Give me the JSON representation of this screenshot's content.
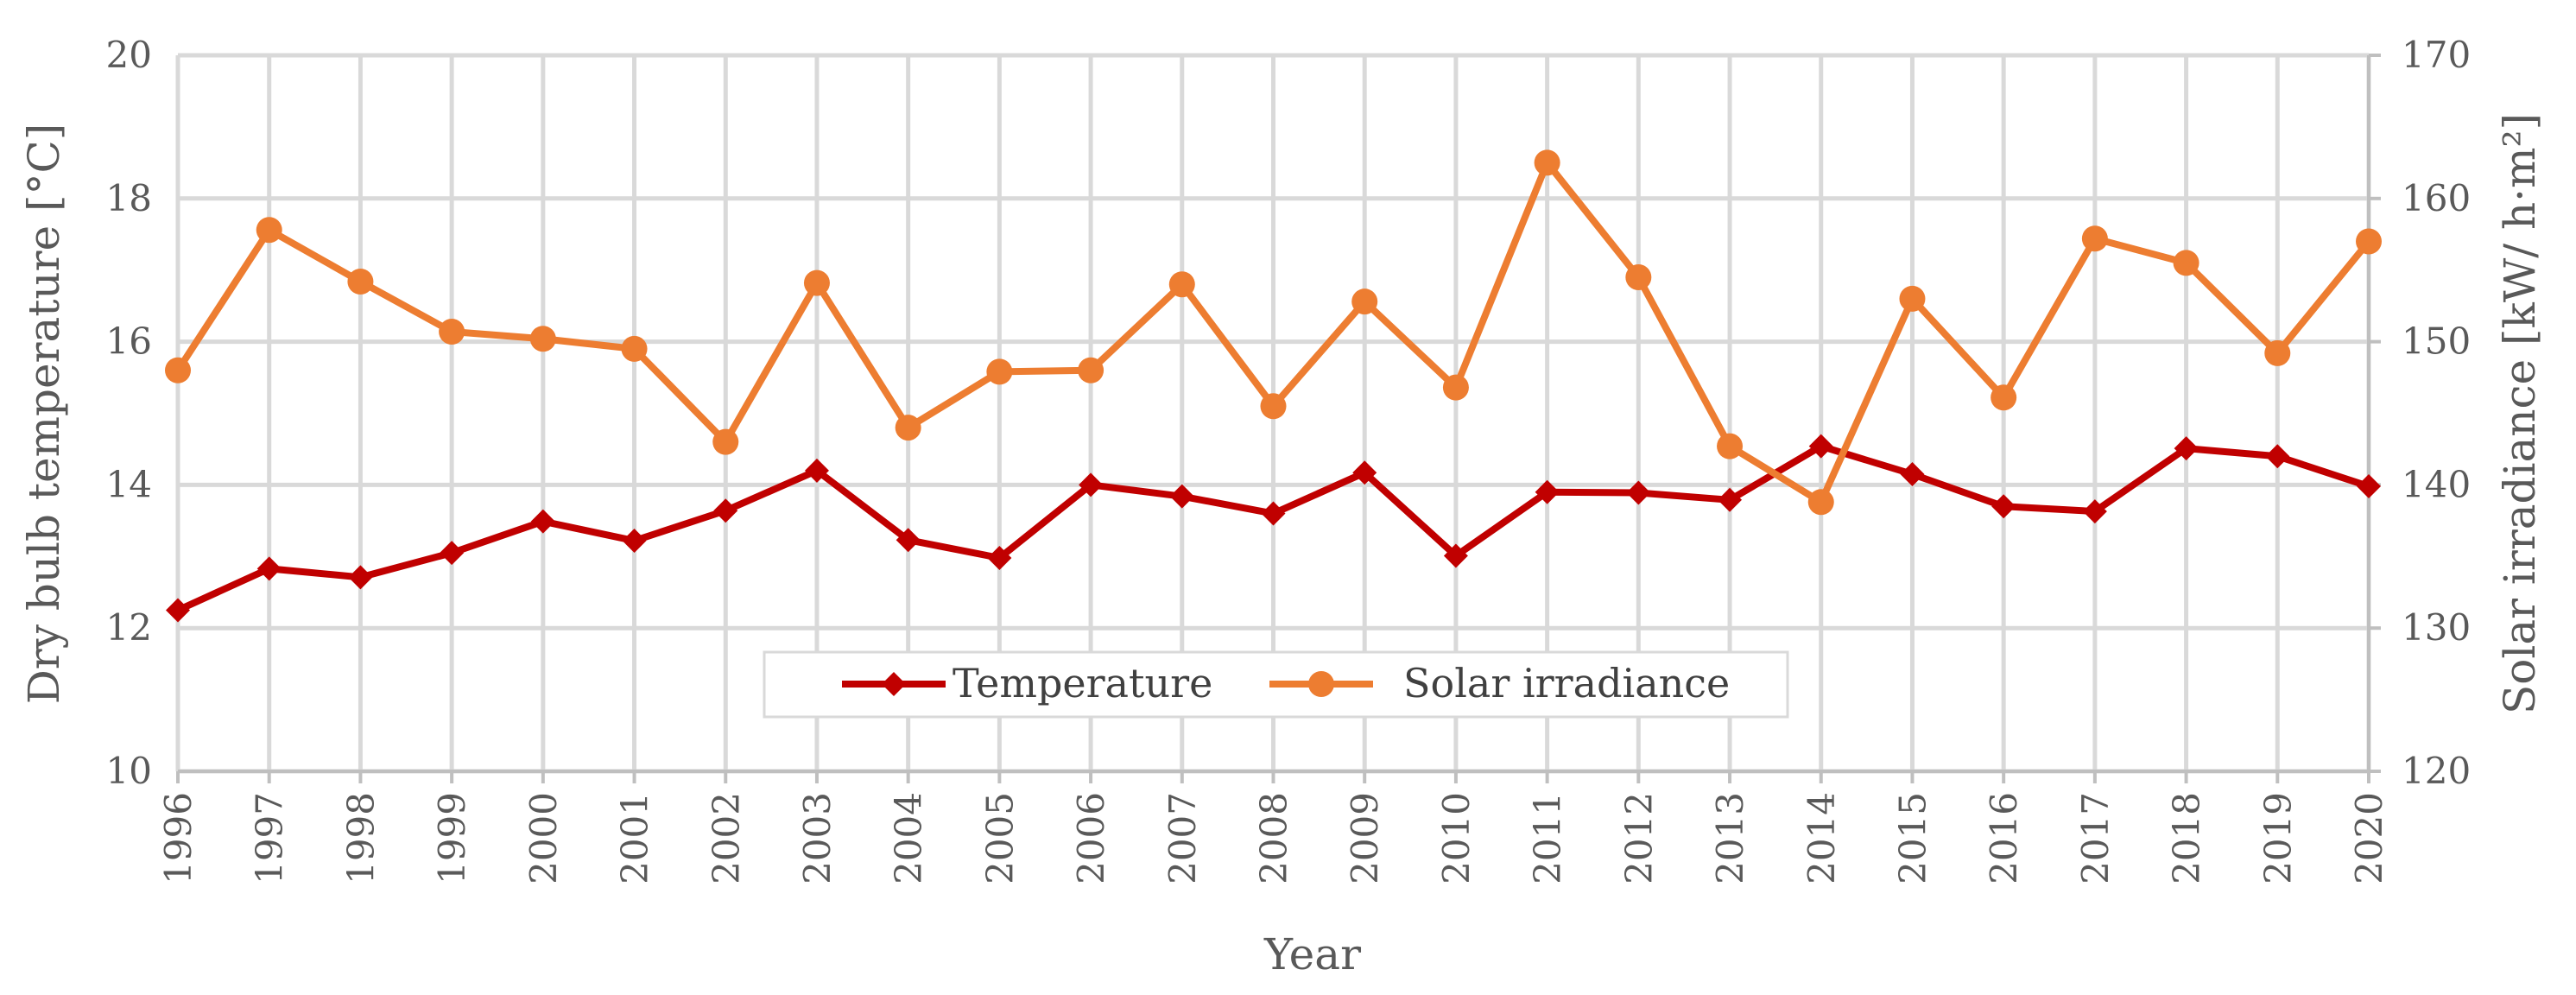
{
  "chart_data": {
    "type": "line",
    "x": [
      "1996",
      "1997",
      "1998",
      "1999",
      "2000",
      "2001",
      "2002",
      "2003",
      "2004",
      "2005",
      "2006",
      "2007",
      "2008",
      "2009",
      "2010",
      "2011",
      "2012",
      "2013",
      "2014",
      "2015",
      "2016",
      "2017",
      "2018",
      "2019",
      "2020"
    ],
    "xlabel": "Year",
    "ylabel": "Dry bulb temperature [°C]",
    "y2label": "Solar irradiance [kW/ h·m²]",
    "ylim": [
      10,
      20
    ],
    "y2lim": [
      120,
      170
    ],
    "yticks": [
      "10",
      "12",
      "14",
      "16",
      "18",
      "20"
    ],
    "y2ticks": [
      "120",
      "130",
      "140",
      "150",
      "160",
      "170"
    ],
    "grid": true,
    "legend_position": "bottom-center",
    "series": [
      {
        "name": "Temperature",
        "axis": "left",
        "marker": "diamond",
        "color": "#c00000",
        "values": [
          12.25,
          12.83,
          12.71,
          13.05,
          13.49,
          13.22,
          13.64,
          14.2,
          13.23,
          12.98,
          14.0,
          13.84,
          13.6,
          14.17,
          13.01,
          13.9,
          13.89,
          13.79,
          14.54,
          14.15,
          13.7,
          13.63,
          14.51,
          14.4,
          13.98
        ]
      },
      {
        "name": "Solar irradiance",
        "axis": "right",
        "marker": "circle",
        "color": "#ed7d31",
        "values": [
          148.0,
          157.8,
          154.2,
          150.7,
          150.2,
          149.5,
          143.0,
          154.1,
          144.0,
          147.9,
          148.0,
          154.0,
          145.5,
          152.8,
          146.8,
          162.5,
          154.5,
          142.7,
          138.8,
          153.0,
          146.1,
          157.2,
          155.5,
          149.2,
          157.0
        ]
      }
    ]
  }
}
